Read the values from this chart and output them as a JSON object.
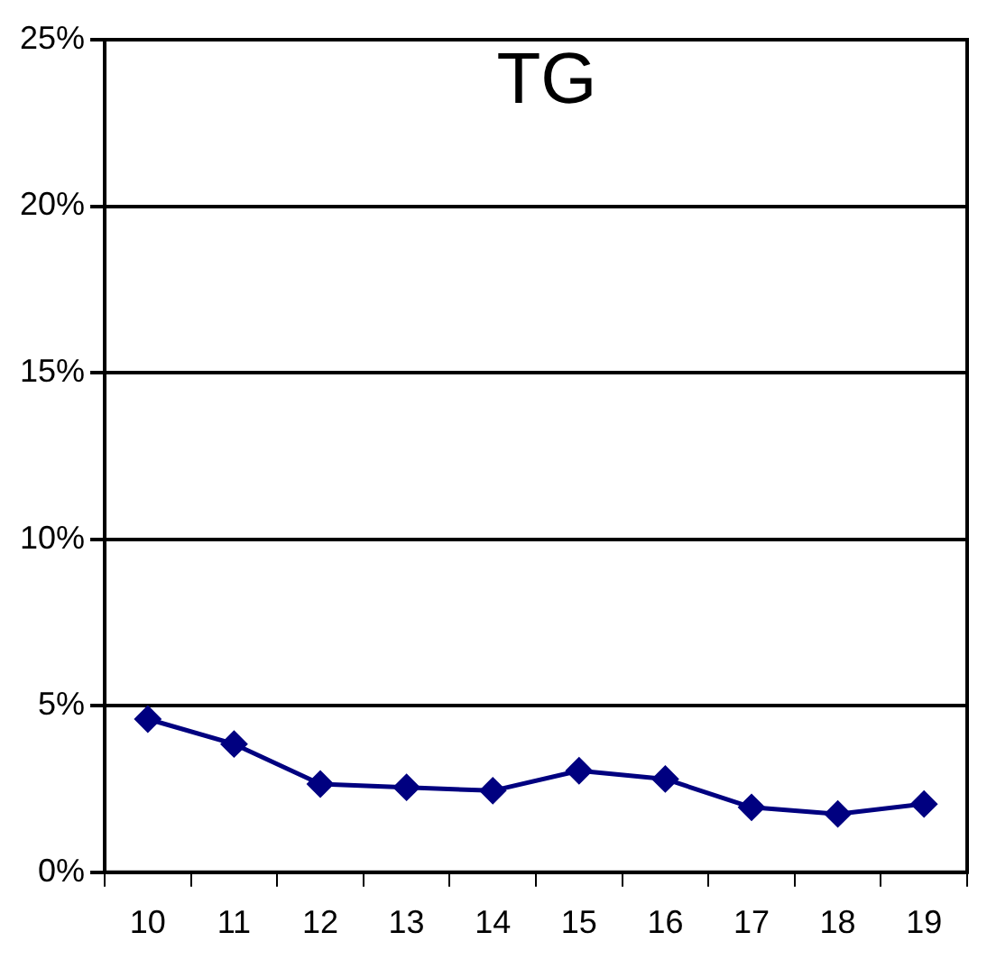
{
  "chart_data": {
    "type": "line",
    "title": "TG",
    "categories": [
      "10",
      "11",
      "12",
      "13",
      "14",
      "15",
      "16",
      "17",
      "18",
      "19"
    ],
    "series": [
      {
        "color": "#000080",
        "values": [
          4.6,
          3.85,
          2.65,
          2.55,
          2.45,
          3.05,
          2.8,
          1.95,
          1.75,
          2.05
        ]
      }
    ],
    "ylim": [
      0,
      25
    ],
    "yticks": [
      {
        "value": 0,
        "label": "0%"
      },
      {
        "value": 5,
        "label": "5%"
      },
      {
        "value": 10,
        "label": "10%"
      },
      {
        "value": 15,
        "label": "15%"
      },
      {
        "value": 20,
        "label": "20%"
      },
      {
        "value": 25,
        "label": "25%"
      }
    ],
    "grid": "y",
    "legend": false,
    "marker": "diamond",
    "line_style": "solid"
  }
}
